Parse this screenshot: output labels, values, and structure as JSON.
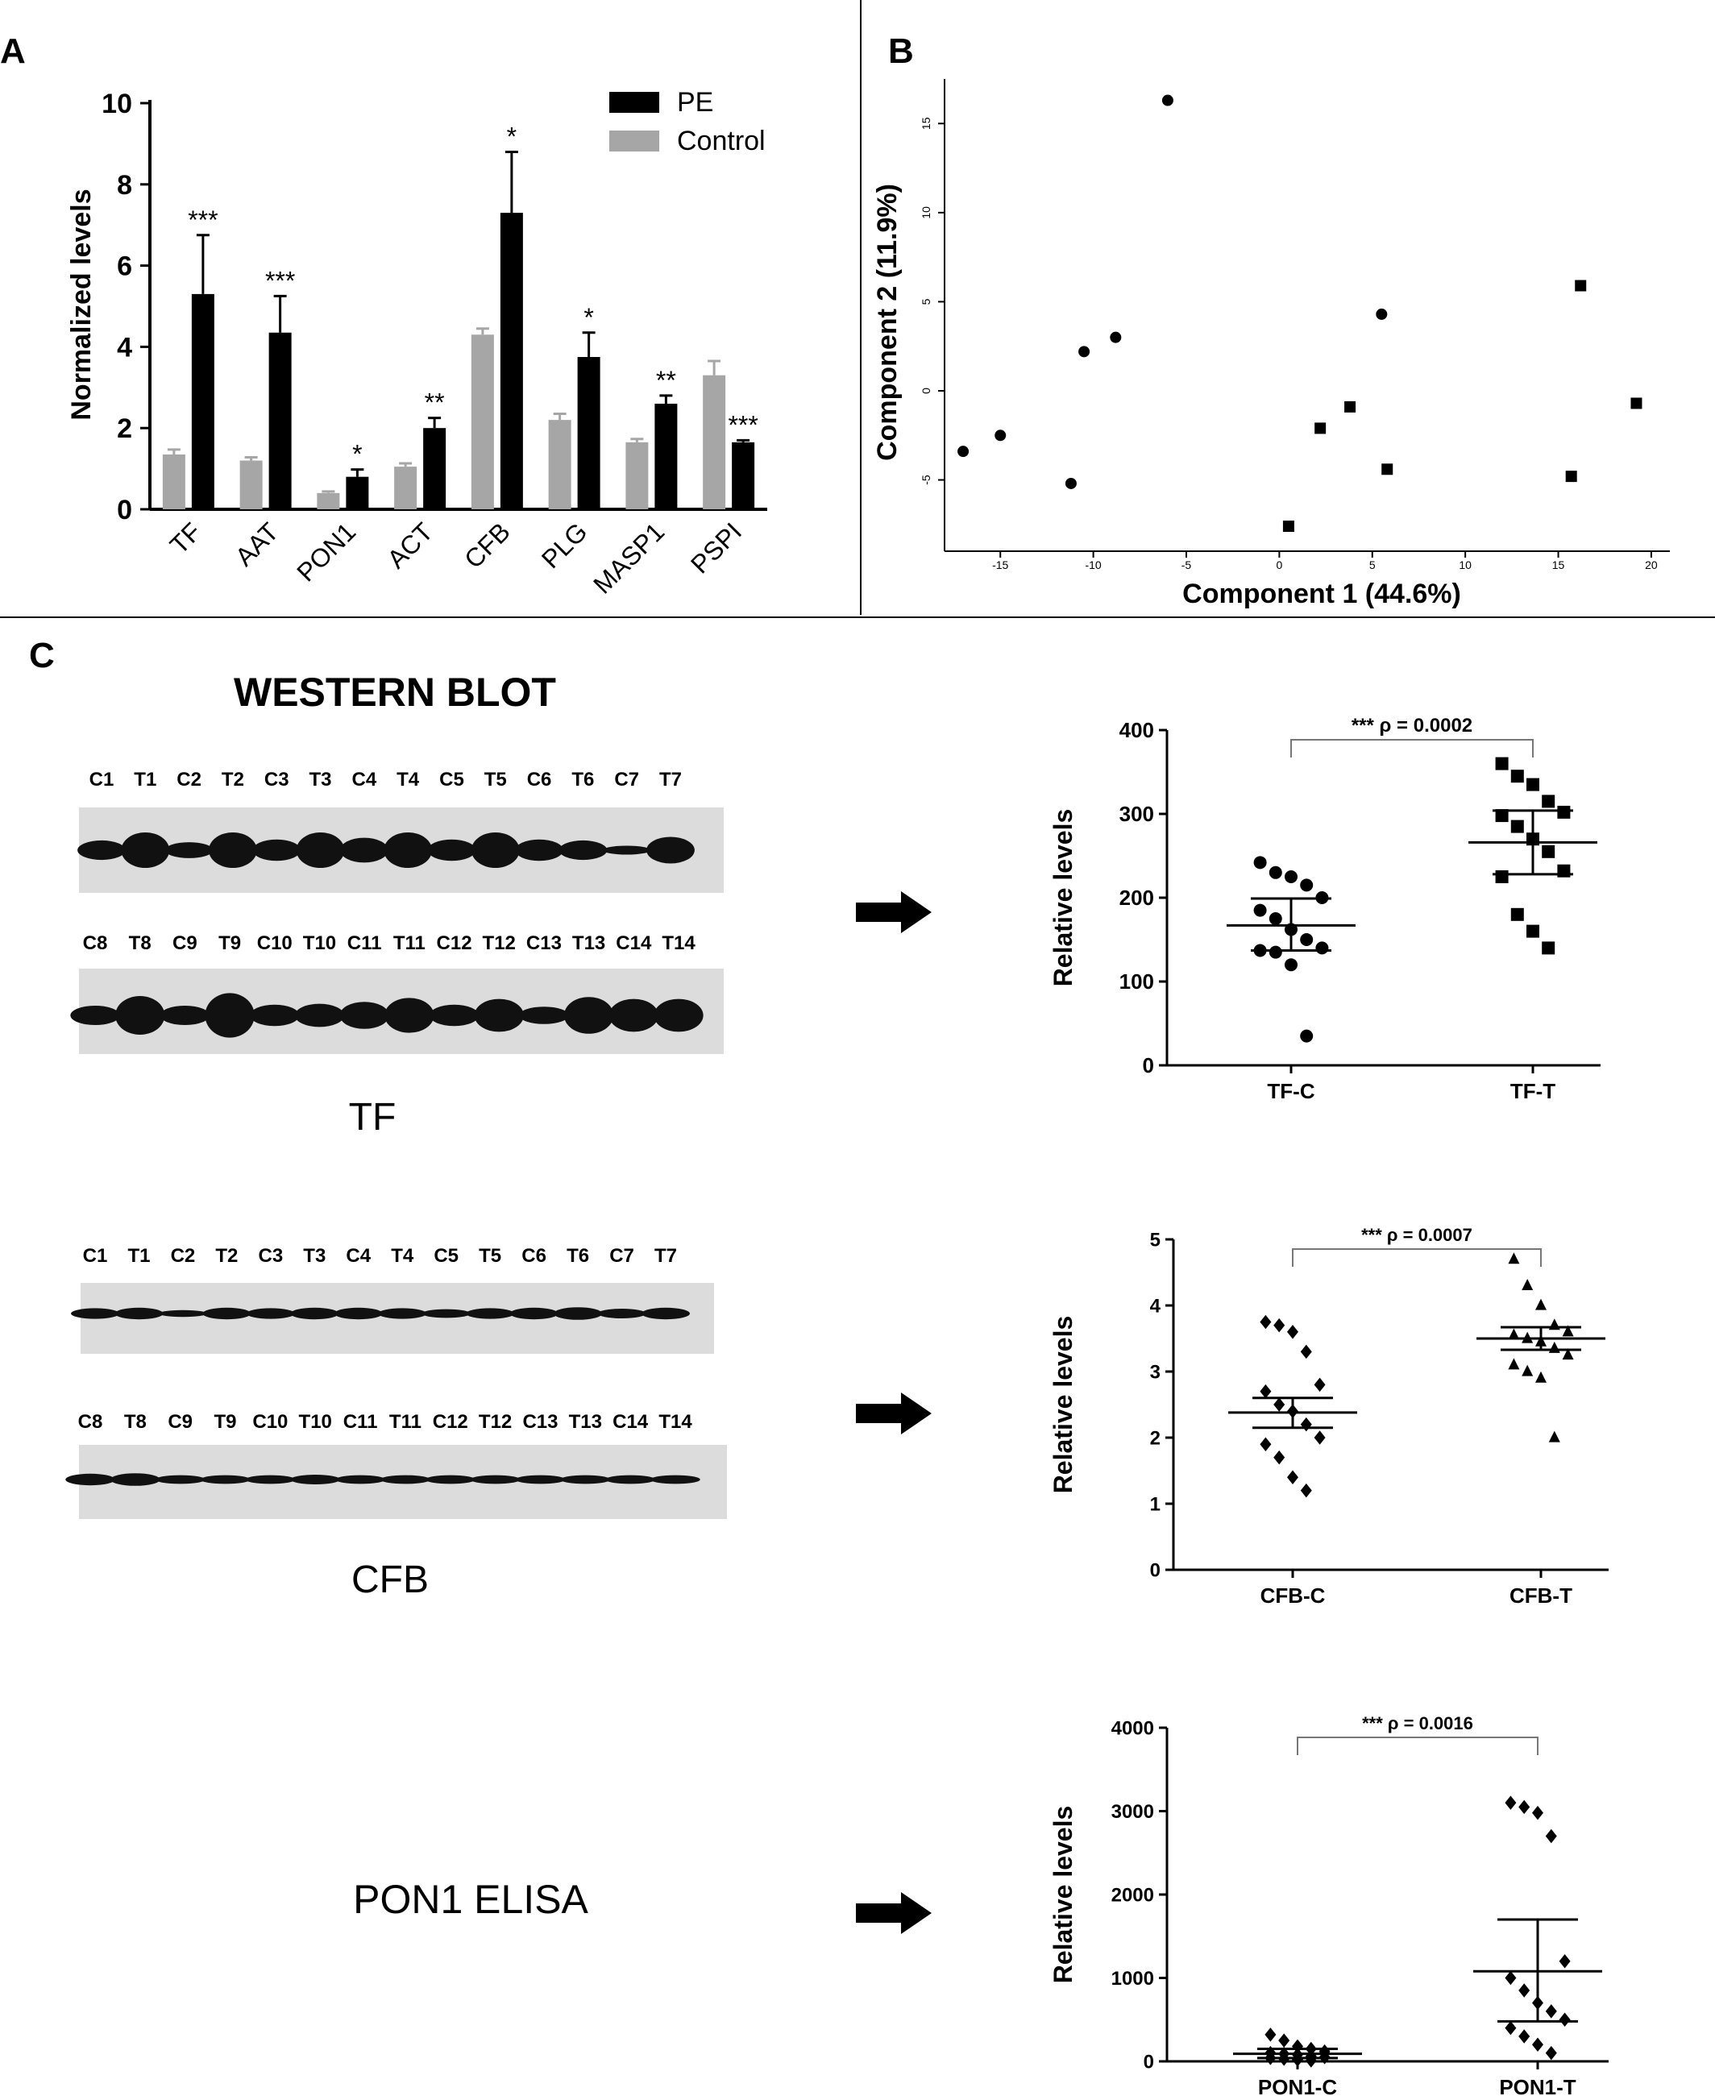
{
  "panels": {
    "A": "A",
    "B": "B",
    "C": "C"
  },
  "chart_data": [
    {
      "id": "panel-a",
      "type": "bar",
      "ylabel": "Normalized levels",
      "ylim": [
        0,
        10
      ],
      "yticks": [
        0,
        2,
        4,
        6,
        8,
        10
      ],
      "categories": [
        "TF",
        "AAT",
        "PON1",
        "ACT",
        "CFB",
        "PLG",
        "MASP1",
        "PSPI"
      ],
      "legend_position": "top-right",
      "series": [
        {
          "name": "Control",
          "color": "#a6a6a6",
          "values": [
            1.35,
            1.2,
            0.4,
            1.05,
            4.3,
            2.2,
            1.65,
            3.3
          ],
          "errors": [
            0.12,
            0.08,
            0.04,
            0.08,
            0.15,
            0.15,
            0.08,
            0.35
          ]
        },
        {
          "name": "PE",
          "color": "#000000",
          "values": [
            5.3,
            4.35,
            0.8,
            2.0,
            7.3,
            3.75,
            2.6,
            1.65
          ],
          "errors": [
            1.45,
            0.9,
            0.18,
            0.25,
            1.5,
            0.6,
            0.2,
            0.05
          ]
        }
      ],
      "significance": [
        "***",
        "***",
        "*",
        "**",
        "*",
        "*",
        "**",
        "***"
      ]
    },
    {
      "id": "panel-b",
      "type": "scatter",
      "xlabel": "Component 1 (44.6%)",
      "ylabel": "Component 2 (11.9%)",
      "xlim": [
        -18,
        21
      ],
      "ylim": [
        -9,
        17.5
      ],
      "xticks": [
        -15,
        -10,
        -5,
        0,
        5,
        10,
        15,
        20
      ],
      "yticks": [
        -5,
        0,
        5,
        10,
        15
      ],
      "xtick_labels": [
        "-15",
        "-10",
        "-5",
        "0",
        "5",
        "10",
        "15",
        "20"
      ],
      "ytick_labels": [
        "-5",
        "0",
        "5",
        "10",
        "15"
      ],
      "series": [
        {
          "marker": "circle",
          "x": [
            -6.0,
            -17.0,
            -15.0,
            -11.2,
            -10.5,
            -8.8,
            5.5
          ],
          "y": [
            16.3,
            -3.4,
            -2.5,
            -5.2,
            2.2,
            3.0,
            4.3
          ]
        },
        {
          "marker": "square",
          "x": [
            16.2,
            19.2,
            2.2,
            3.8,
            5.8,
            15.7,
            0.5
          ],
          "y": [
            5.9,
            -0.7,
            -2.1,
            -0.9,
            -4.4,
            -4.8,
            -7.6
          ]
        }
      ]
    },
    {
      "id": "panel-c-tf",
      "type": "scatter",
      "ylabel": "Relative levels",
      "ylim": [
        0,
        400
      ],
      "yticks": [
        0,
        100,
        200,
        300,
        400
      ],
      "categories": [
        "TF-C",
        "TF-T"
      ],
      "annotation": "*** ρ = 0.0002",
      "groups": [
        {
          "category": "TF-C",
          "marker": "circle",
          "values": [
            242,
            230,
            225,
            215,
            200,
            185,
            175,
            162,
            150,
            140,
            137,
            135,
            120,
            35
          ],
          "mean": 167,
          "error_low": 137,
          "error_high": 199
        },
        {
          "category": "TF-T",
          "marker": "square",
          "values": [
            360,
            345,
            335,
            315,
            302,
            298,
            285,
            270,
            255,
            232,
            225,
            180,
            160,
            140
          ],
          "mean": 266,
          "error_low": 228,
          "error_high": 304
        }
      ]
    },
    {
      "id": "panel-c-cfb",
      "type": "scatter",
      "ylabel": "Relative levels",
      "ylim": [
        0,
        5
      ],
      "yticks": [
        0,
        1,
        2,
        3,
        4,
        5
      ],
      "categories": [
        "CFB-C",
        "CFB-T"
      ],
      "annotation": "*** ρ = 0.0007",
      "groups": [
        {
          "category": "CFB-C",
          "marker": "diamond",
          "values": [
            3.75,
            3.7,
            3.6,
            3.3,
            2.8,
            2.7,
            2.5,
            2.4,
            2.2,
            2.0,
            1.9,
            1.7,
            1.4,
            1.2
          ],
          "mean": 2.38,
          "error_low": 2.15,
          "error_high": 2.6
        },
        {
          "category": "CFB-T",
          "marker": "triangle",
          "values": [
            4.7,
            4.3,
            4.0,
            3.7,
            3.6,
            3.55,
            3.5,
            3.45,
            3.35,
            3.25,
            3.1,
            3.0,
            2.9,
            2.0
          ],
          "mean": 3.5,
          "error_low": 3.33,
          "error_high": 3.67
        }
      ]
    },
    {
      "id": "panel-c-pon1",
      "type": "scatter",
      "ylabel": "Relative levels",
      "ylim": [
        0,
        4000
      ],
      "yticks": [
        0,
        1000,
        2000,
        3000,
        4000
      ],
      "categories": [
        "PON1-C",
        "PON1-T"
      ],
      "annotation": "*** ρ = 0.0016",
      "groups": [
        {
          "category": "PON1-C",
          "marker": "diamond",
          "values": [
            320,
            250,
            180,
            150,
            120,
            100,
            90,
            80,
            60,
            50,
            40,
            30,
            20,
            10
          ],
          "mean": 90,
          "error_low": 40,
          "error_high": 150
        },
        {
          "category": "PON1-T",
          "marker": "diamond",
          "values": [
            3100,
            3050,
            2980,
            2700,
            1200,
            1000,
            850,
            700,
            600,
            500,
            400,
            300,
            200,
            100
          ],
          "mean": 1080,
          "error_low": 480,
          "error_high": 1700
        }
      ]
    }
  ],
  "western_blot": {
    "title": "WESTERN BLOT",
    "tf": {
      "name": "TF",
      "lanes_top": [
        "C1",
        "T1",
        "C2",
        "T2",
        "C3",
        "T3",
        "C4",
        "T4",
        "C5",
        "T5",
        "C6",
        "T6",
        "C7",
        "T7"
      ],
      "lanes_bottom": [
        "C8",
        "T8",
        "C9",
        "T9",
        "C10",
        "T10",
        "C11",
        "T11",
        "C12",
        "T12",
        "C13",
        "T13",
        "C14",
        "T14"
      ]
    },
    "cfb": {
      "name": "CFB",
      "lanes_top": [
        "C1",
        "T1",
        "C2",
        "T2",
        "C3",
        "T3",
        "C4",
        "T4",
        "C5",
        "T5",
        "C6",
        "T6",
        "C7",
        "T7"
      ],
      "lanes_bottom": [
        "C8",
        "T8",
        "C9",
        "T9",
        "C10",
        "T10",
        "C11",
        "T11",
        "C12",
        "T12",
        "C13",
        "T13",
        "C14",
        "T14"
      ]
    },
    "pon1_label": "PON1 ELISA"
  }
}
